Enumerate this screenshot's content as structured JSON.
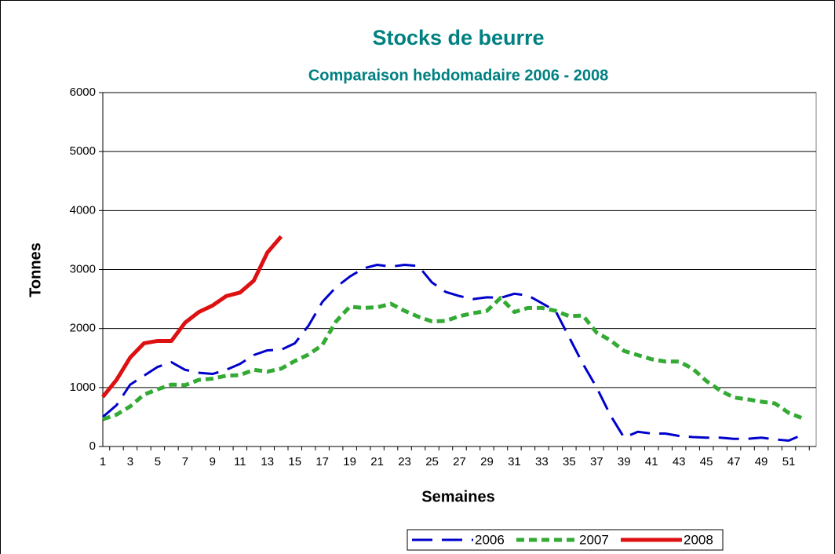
{
  "chart_data": {
    "type": "line",
    "title": "Stocks de beurre",
    "subtitle": "Comparaison hebdomadaire 2006 - 2008",
    "x_label": "Semaines",
    "y_label": "Tonnes",
    "categories": [
      "1",
      null,
      "3",
      null,
      "5",
      null,
      "7",
      null,
      "9",
      null,
      "11",
      null,
      "13",
      null,
      "15",
      null,
      "17",
      null,
      "19",
      null,
      "21",
      null,
      "23",
      null,
      "25",
      null,
      "27",
      null,
      "29",
      null,
      "31",
      null,
      "33",
      null,
      "35",
      null,
      "37",
      null,
      "39",
      null,
      "41",
      null,
      "43",
      null,
      "45",
      null,
      "47",
      null,
      "49",
      null,
      "51",
      null
    ],
    "ylim": [
      0,
      6000
    ],
    "yticks": [
      0,
      1000,
      2000,
      3000,
      4000,
      5000,
      6000
    ],
    "grid": true,
    "legend": "bottom",
    "series": [
      {
        "name": "2006",
        "color": "#0000cc",
        "dash": "long",
        "values": [
          500,
          700,
          1050,
          1200,
          1350,
          1430,
          1300,
          1250,
          1230,
          1300,
          1400,
          1550,
          1630,
          1640,
          1750,
          2050,
          2450,
          2700,
          2880,
          3020,
          3080,
          3050,
          3080,
          3060,
          2780,
          2620,
          2550,
          2500,
          2530,
          2520,
          2590,
          2560,
          2430,
          2300,
          1850,
          1400,
          1000,
          530,
          150,
          250,
          220,
          220,
          180,
          160,
          150,
          150,
          130,
          130,
          150,
          120,
          100,
          200
        ]
      },
      {
        "name": "2007",
        "color": "#33aa33",
        "dash": "short",
        "values": [
          460,
          540,
          680,
          880,
          970,
          1050,
          1040,
          1130,
          1150,
          1200,
          1210,
          1300,
          1270,
          1320,
          1450,
          1560,
          1720,
          2120,
          2370,
          2350,
          2360,
          2420,
          2300,
          2200,
          2120,
          2130,
          2210,
          2260,
          2300,
          2520,
          2280,
          2350,
          2350,
          2300,
          2210,
          2220,
          1930,
          1800,
          1620,
          1550,
          1480,
          1440,
          1440,
          1320,
          1110,
          950,
          830,
          800,
          760,
          730,
          570,
          480
        ]
      },
      {
        "name": "2008",
        "color": "#dd1111",
        "dash": "solid",
        "values": [
          840,
          1130,
          1510,
          1750,
          1790,
          1790,
          2100,
          2280,
          2390,
          2550,
          2610,
          2810,
          3290,
          3560,
          null,
          null,
          null,
          null,
          null,
          null,
          null,
          null,
          null,
          null,
          null,
          null,
          null,
          null,
          null,
          null,
          null,
          null,
          null,
          null,
          null,
          null,
          null,
          null,
          null,
          null,
          null,
          null,
          null,
          null,
          null,
          null,
          null,
          null,
          null,
          null,
          null,
          null
        ]
      }
    ]
  }
}
